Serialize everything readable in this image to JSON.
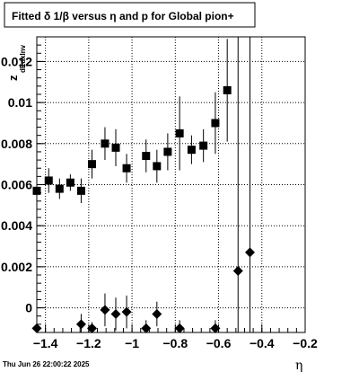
{
  "title": "Fitted δ 1/β versus η  and p for Global pion+",
  "timestamp": "Thu Jun 26 22:00:22 2025",
  "chart_data": {
    "type": "scatter",
    "title": "Fitted δ 1/β versus η  and p for Global pion+",
    "xlabel": "η",
    "ylabel": "z",
    "ylabel_sub": "dEdxInv",
    "xlim": [
      -1.44,
      -0.2
    ],
    "ylim": [
      -0.0012,
      0.0132
    ],
    "grid": true,
    "xticks": [
      -1.4,
      -1.2,
      -1,
      -0.8,
      -0.6,
      -0.4,
      -0.2
    ],
    "xtick_labels": [
      "−1.4",
      "−1.2",
      "−1",
      "−0.8",
      "−0.6",
      "−0.4",
      "−0.2"
    ],
    "yticks": [
      0,
      0.002,
      0.004,
      0.006,
      0.008,
      0.01,
      0.012
    ],
    "ytick_labels": [
      "0",
      "0.002",
      "0.004",
      "0.006",
      "0.008",
      "0.01",
      "0.012"
    ],
    "series": [
      {
        "marker": "square",
        "color": "#000000",
        "points": [
          {
            "x": -1.44,
            "y": 0.0057,
            "err": 0.0006
          },
          {
            "x": -1.385,
            "y": 0.0062,
            "err": 0.0006
          },
          {
            "x": -1.335,
            "y": 0.0058,
            "err": 0.0005
          },
          {
            "x": -1.285,
            "y": 0.0061,
            "err": 0.0004
          },
          {
            "x": -1.235,
            "y": 0.0057,
            "err": 0.0006
          },
          {
            "x": -1.185,
            "y": 0.007,
            "err": 0.0007
          },
          {
            "x": -1.125,
            "y": 0.008,
            "err": 0.0008
          },
          {
            "x": -1.075,
            "y": 0.0078,
            "err": 0.0009
          },
          {
            "x": -1.025,
            "y": 0.0068,
            "err": 0.0007
          },
          {
            "x": -0.935,
            "y": 0.0074,
            "err": 0.0008
          },
          {
            "x": -0.885,
            "y": 0.0069,
            "err": 0.0008
          },
          {
            "x": -0.835,
            "y": 0.0076,
            "err": 0.0009
          },
          {
            "x": -0.78,
            "y": 0.0085,
            "err": 0.0018
          },
          {
            "x": -0.725,
            "y": 0.0077,
            "err": 0.0007
          },
          {
            "x": -0.67,
            "y": 0.0079,
            "err": 0.0008
          },
          {
            "x": -0.615,
            "y": 0.009,
            "err": 0.0015
          },
          {
            "x": -0.56,
            "y": 0.0106,
            "err": 0.0025
          }
        ]
      },
      {
        "marker": "diamond",
        "color": "#000000",
        "points": [
          {
            "x": -1.44,
            "y": -0.001,
            "err": 0.0003
          },
          {
            "x": -1.235,
            "y": -0.0008,
            "err": 0.0005
          },
          {
            "x": -1.185,
            "y": -0.001,
            "err": 0.0003
          },
          {
            "x": -1.125,
            "y": -0.0001,
            "err": 0.0008
          },
          {
            "x": -1.075,
            "y": -0.0003,
            "err": 0.0008
          },
          {
            "x": -1.025,
            "y": -0.0002,
            "err": 0.0008
          },
          {
            "x": -0.935,
            "y": -0.001,
            "err": 0.0004
          },
          {
            "x": -0.885,
            "y": -0.0003,
            "err": 0.0006
          },
          {
            "x": -0.78,
            "y": -0.001,
            "err": 0.0004
          },
          {
            "x": -0.615,
            "y": -0.001,
            "err": 0.0004
          },
          {
            "x": -0.51,
            "y": 0.0018,
            "err": 0.013
          },
          {
            "x": -0.455,
            "y": 0.0027,
            "err": 0.013
          }
        ]
      }
    ]
  }
}
